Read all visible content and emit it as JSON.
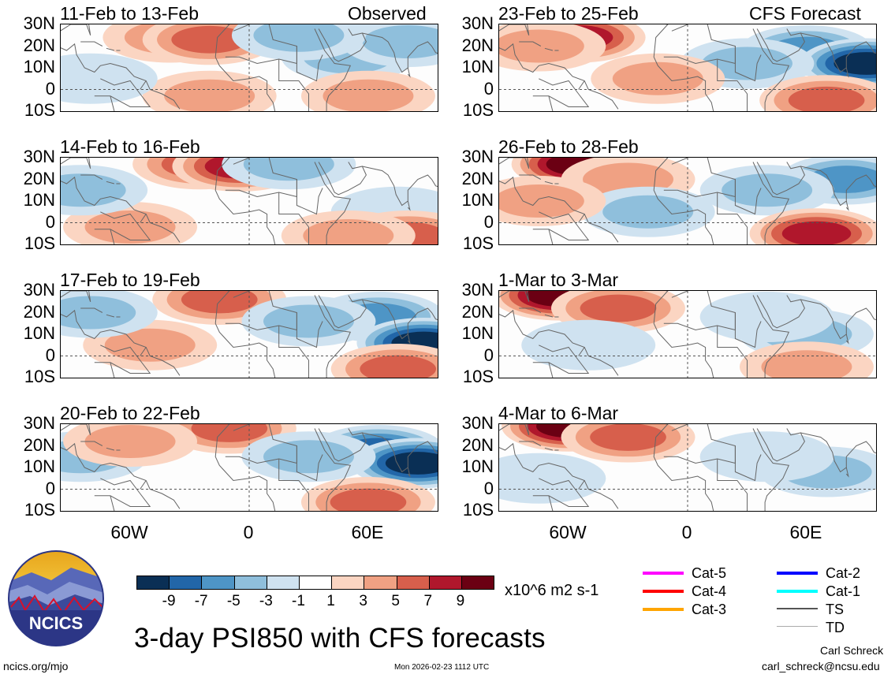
{
  "header": {
    "left_label": "Observed",
    "right_label": "CFS Forecast"
  },
  "panels": [
    {
      "title": "11-Feb to 13-Feb",
      "kind": "obs"
    },
    {
      "title": "14-Feb to 16-Feb",
      "kind": "obs"
    },
    {
      "title": "17-Feb to 19-Feb",
      "kind": "obs"
    },
    {
      "title": "20-Feb to 22-Feb",
      "kind": "obs"
    },
    {
      "title": "23-Feb to 25-Feb",
      "kind": "fcst"
    },
    {
      "title": "26-Feb to 28-Feb",
      "kind": "fcst"
    },
    {
      "title": "1-Mar to 3-Mar",
      "kind": "fcst"
    },
    {
      "title": "4-Mar to 6-Mar",
      "kind": "fcst"
    }
  ],
  "axes": {
    "lat_ticks": [
      "30N",
      "20N",
      "10N",
      "0",
      "10S"
    ],
    "lon_ticks": [
      "60W",
      "0",
      "60E"
    ]
  },
  "chart_data": {
    "type": "heatmap",
    "title": "3-day PSI850 with CFS forecasts",
    "variable": "PSI850 anomaly",
    "units": "x10^6 m2 s-1",
    "lat_range": [
      -10,
      30
    ],
    "lon_range": [
      -95,
      95
    ],
    "colorbar": {
      "levels": [
        "-9",
        "-7",
        "-5",
        "-3",
        "-1",
        "1",
        "3",
        "5",
        "7",
        "9"
      ],
      "colors": [
        "#0a2f55",
        "#2266a8",
        "#4e95c6",
        "#8fbfdc",
        "#cfe2f0",
        "#ffffff",
        "#fbd5c2",
        "#f0a183",
        "#d75f4c",
        "#b0172c",
        "#6b0013"
      ]
    },
    "fields": [
      {
        "title": "11-Feb to 13-Feb",
        "blobs": [
          {
            "lon": -40,
            "lat": 24,
            "value": 3
          },
          {
            "lon": -20,
            "lat": 23,
            "value": 5
          },
          {
            "lon": 50,
            "lat": 15,
            "value": -3
          },
          {
            "lon": 80,
            "lat": 22,
            "value": -3
          },
          {
            "lon": -20,
            "lat": -3,
            "value": 3
          },
          {
            "lon": 60,
            "lat": -3,
            "value": 3
          },
          {
            "lon": 25,
            "lat": 25,
            "value": -3
          },
          {
            "lon": -80,
            "lat": 5,
            "value": -1
          }
        ]
      },
      {
        "title": "14-Feb to 16-Feb",
        "blobs": [
          {
            "lon": -25,
            "lat": 27,
            "value": 5
          },
          {
            "lon": -5,
            "lat": 26,
            "value": 7
          },
          {
            "lon": 20,
            "lat": 27,
            "value": -3
          },
          {
            "lon": 75,
            "lat": 5,
            "value": -1
          },
          {
            "lon": 80,
            "lat": -6,
            "value": 5
          },
          {
            "lon": 50,
            "lat": -6,
            "value": 3
          },
          {
            "lon": -60,
            "lat": -2,
            "value": 3
          },
          {
            "lon": -85,
            "lat": 15,
            "value": -3
          }
        ]
      },
      {
        "title": "17-Feb to 19-Feb",
        "blobs": [
          {
            "lon": -15,
            "lat": 26,
            "value": 5
          },
          {
            "lon": 65,
            "lat": 18,
            "value": -5
          },
          {
            "lon": 88,
            "lat": 6,
            "value": -9
          },
          {
            "lon": 30,
            "lat": 16,
            "value": -3
          },
          {
            "lon": 75,
            "lat": -6,
            "value": 5
          },
          {
            "lon": -50,
            "lat": 5,
            "value": 3
          },
          {
            "lon": -80,
            "lat": 20,
            "value": -3
          }
        ]
      },
      {
        "title": "20-Feb to 22-Feb",
        "blobs": [
          {
            "lon": -10,
            "lat": 28,
            "value": 5
          },
          {
            "lon": 65,
            "lat": 18,
            "value": -7
          },
          {
            "lon": 85,
            "lat": 12,
            "value": -9
          },
          {
            "lon": 30,
            "lat": 15,
            "value": -3
          },
          {
            "lon": 60,
            "lat": -6,
            "value": 5
          },
          {
            "lon": -85,
            "lat": 15,
            "value": -3
          },
          {
            "lon": -60,
            "lat": 22,
            "value": 3
          }
        ]
      },
      {
        "title": "23-Feb to 25-Feb",
        "blobs": [
          {
            "lon": -55,
            "lat": 24,
            "value": 7
          },
          {
            "lon": -75,
            "lat": 20,
            "value": 3
          },
          {
            "lon": 60,
            "lat": 18,
            "value": -5
          },
          {
            "lon": 90,
            "lat": 12,
            "value": -9
          },
          {
            "lon": 30,
            "lat": 12,
            "value": -3
          },
          {
            "lon": 70,
            "lat": -5,
            "value": 5
          },
          {
            "lon": -15,
            "lat": 5,
            "value": 3
          }
        ]
      },
      {
        "title": "26-Feb to 28-Feb",
        "blobs": [
          {
            "lon": -55,
            "lat": 27,
            "value": 9
          },
          {
            "lon": -30,
            "lat": 20,
            "value": 3
          },
          {
            "lon": 80,
            "lat": 20,
            "value": -5
          },
          {
            "lon": 40,
            "lat": 15,
            "value": -3
          },
          {
            "lon": 65,
            "lat": -5,
            "value": 7
          },
          {
            "lon": -20,
            "lat": 5,
            "value": -3
          },
          {
            "lon": -75,
            "lat": 10,
            "value": 3
          }
        ]
      },
      {
        "title": "1-Mar to 3-Mar",
        "blobs": [
          {
            "lon": -65,
            "lat": 28,
            "value": 9
          },
          {
            "lon": -35,
            "lat": 22,
            "value": 5
          },
          {
            "lon": 60,
            "lat": 10,
            "value": -3
          },
          {
            "lon": 40,
            "lat": 18,
            "value": -1
          },
          {
            "lon": 60,
            "lat": -5,
            "value": 3
          },
          {
            "lon": -50,
            "lat": 5,
            "value": -1
          }
        ]
      },
      {
        "title": "4-Mar to 6-Mar",
        "blobs": [
          {
            "lon": -60,
            "lat": 29,
            "value": 9
          },
          {
            "lon": -30,
            "lat": 24,
            "value": 5
          },
          {
            "lon": 70,
            "lat": 8,
            "value": -3
          },
          {
            "lon": 40,
            "lat": 15,
            "value": -1
          },
          {
            "lon": -75,
            "lat": 5,
            "value": -1
          }
        ]
      }
    ]
  },
  "legend": {
    "items": [
      {
        "label": "Cat-5",
        "color": "#ff00ff"
      },
      {
        "label": "Cat-4",
        "color": "#ff0000"
      },
      {
        "label": "Cat-3",
        "color": "#ffa500"
      },
      {
        "label": "Cat-2",
        "color": "#0000ff"
      },
      {
        "label": "Cat-1",
        "color": "#00ffff"
      },
      {
        "label": "TS",
        "color": "#555555"
      },
      {
        "label": "TD",
        "color": "#aaaaaa"
      }
    ]
  },
  "footer": {
    "url": "ncics.org/mjo",
    "timestamp": "Mon 2026-02-23 1112 UTC",
    "author": "Carl Schreck",
    "email": "carl_schreck@ncsu.edu",
    "logo_text": "NCICS"
  }
}
